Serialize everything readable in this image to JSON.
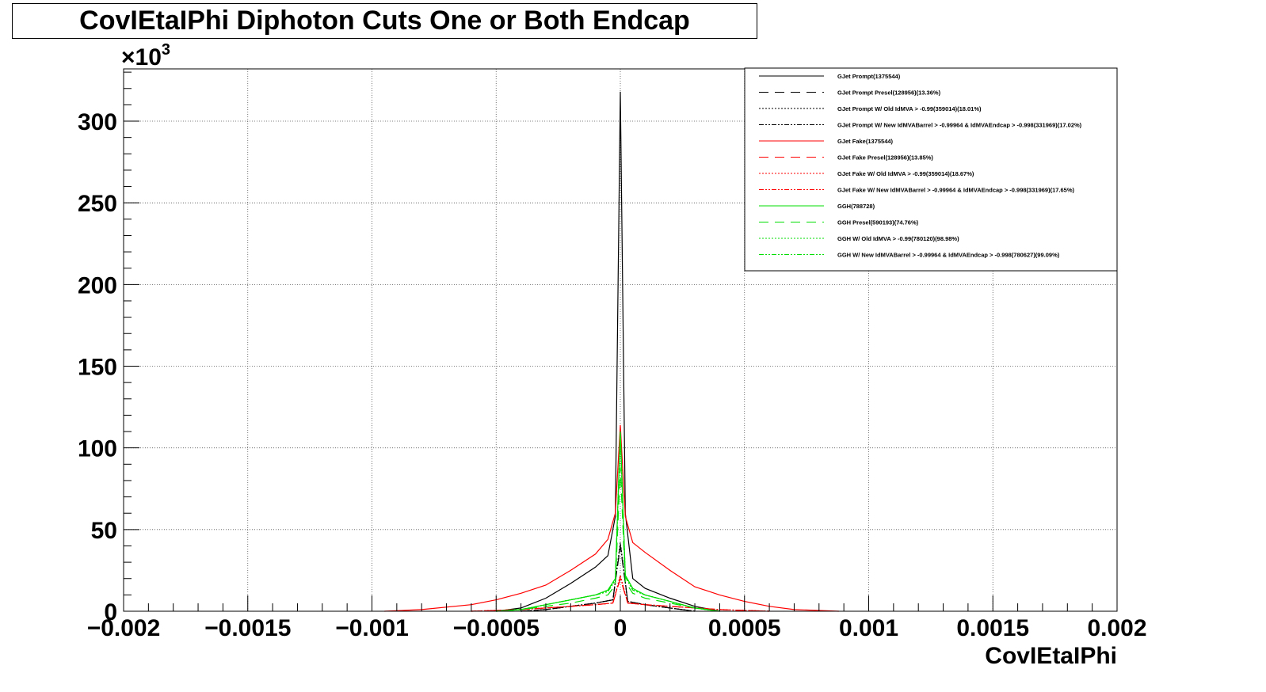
{
  "chart_data": {
    "type": "line",
    "title": "CovIEtaIPhi Diphoton Cuts One or Both Endcap",
    "xlabel": "CovIEtaIPhi",
    "ylabel": "",
    "y_multiplier": "×10",
    "y_multiplier_exp": "3",
    "xlim": [
      -0.002,
      0.002
    ],
    "ylim": [
      0,
      332
    ],
    "grid": true,
    "legend_position": "top-right",
    "x_ticks": [
      {
        "v": -0.002,
        "label": "−0.002"
      },
      {
        "v": -0.0015,
        "label": "−0.0015"
      },
      {
        "v": -0.001,
        "label": "−0.001"
      },
      {
        "v": -0.0005,
        "label": "−0.0005"
      },
      {
        "v": 0,
        "label": "0"
      },
      {
        "v": 0.0005,
        "label": "0.0005"
      },
      {
        "v": 0.001,
        "label": "0.001"
      },
      {
        "v": 0.0015,
        "label": "0.0015"
      },
      {
        "v": 0.002,
        "label": "0.002"
      }
    ],
    "y_ticks": [
      {
        "v": 0,
        "label": "0"
      },
      {
        "v": 50,
        "label": "50"
      },
      {
        "v": 100,
        "label": "100"
      },
      {
        "v": 150,
        "label": "150"
      },
      {
        "v": 200,
        "label": "200"
      },
      {
        "v": 250,
        "label": "250"
      },
      {
        "v": 300,
        "label": "300"
      }
    ],
    "series": [
      {
        "name": "GJet Prompt(1375544)",
        "color": "#000000",
        "dash": "solid",
        "x": [
          -0.0005,
          -0.0004,
          -0.0003,
          -0.0002,
          -0.0001,
          -5e-05,
          -2e-05,
          0,
          2e-05,
          5e-05,
          0.0001,
          0.0002,
          0.0003,
          0.0004
        ],
        "y": [
          0,
          2,
          8,
          17,
          27,
          34,
          58,
          318,
          60,
          20,
          14,
          8,
          3,
          0
        ]
      },
      {
        "name": "GJet Prompt Presel(128956)(13.36%)",
        "color": "#000000",
        "dash": "12,8",
        "x": [
          -0.0004,
          -0.0003,
          -0.0002,
          -0.0001,
          -3e-05,
          0,
          3e-05,
          0.0001,
          0.0002,
          0.0003
        ],
        "y": [
          0,
          1,
          3,
          5,
          7,
          40,
          6,
          4,
          2,
          0
        ]
      },
      {
        "name": "GJet Prompt W/ Old IdMVA > -0.99(359014)(18.01%)",
        "color": "#000000",
        "dash": "2,2",
        "x": [
          -0.0004,
          -0.0003,
          -0.0002,
          -0.0001,
          -3e-05,
          0,
          3e-05,
          0.0001,
          0.0002,
          0.0003
        ],
        "y": [
          0,
          1,
          3,
          5,
          7,
          42,
          6,
          4,
          2,
          0
        ]
      },
      {
        "name": "GJet Prompt W/ New IdMVABarrel > -0.99964 & IdMVAEndcap > -0.998(331969)(17.02%)",
        "color": "#000000",
        "dash": "6,2,2,2,2,2",
        "x": [
          -0.0004,
          -0.0003,
          -0.0002,
          -0.0001,
          -3e-05,
          0,
          3e-05,
          0.0001,
          0.0002,
          0.0003
        ],
        "y": [
          0,
          1,
          3,
          5,
          7,
          41,
          6,
          4,
          2,
          0
        ]
      },
      {
        "name": "GJet Fake(1375544)",
        "color": "#ff0000",
        "dash": "solid",
        "x": [
          -0.00095,
          -0.0008,
          -0.0006,
          -0.0005,
          -0.0004,
          -0.0003,
          -0.0002,
          -0.0001,
          -5e-05,
          -2e-05,
          0,
          2e-05,
          5e-05,
          0.0001,
          0.0002,
          0.0003,
          0.0004,
          0.0005,
          0.0006,
          0.0007,
          0.00088
        ],
        "y": [
          0,
          1,
          4,
          7,
          11,
          16,
          25,
          35,
          44,
          60,
          114,
          58,
          42,
          36,
          25,
          15,
          10,
          6,
          3,
          1,
          0
        ]
      },
      {
        "name": "GJet Fake Presel(128956)(13.85%)",
        "color": "#ff0000",
        "dash": "12,8",
        "x": [
          -0.0006,
          -0.0004,
          -0.0002,
          -0.0001,
          -3e-05,
          0,
          3e-05,
          0.0001,
          0.0002,
          0.0004,
          0.0006
        ],
        "y": [
          0,
          1,
          3,
          4,
          5,
          20,
          5,
          4,
          3,
          1,
          0
        ]
      },
      {
        "name": "GJet Fake W/ Old IdMVA > -0.99(359014)(18.67%)",
        "color": "#ff0000",
        "dash": "2,2",
        "x": [
          -0.0006,
          -0.0004,
          -0.0002,
          -0.0001,
          -3e-05,
          0,
          3e-05,
          0.0001,
          0.0002,
          0.0004,
          0.0006
        ],
        "y": [
          0,
          1,
          3,
          4,
          5,
          22,
          5,
          4,
          3,
          1,
          0
        ]
      },
      {
        "name": "GJet Fake W/ New IdMVABarrel > -0.99964 & IdMVAEndcap > -0.998(331969)(17.65%)",
        "color": "#ff0000",
        "dash": "6,2,2,2,2,2",
        "x": [
          -0.0006,
          -0.0004,
          -0.0002,
          -0.0001,
          -3e-05,
          0,
          3e-05,
          0.0001,
          0.0002,
          0.0004,
          0.0006
        ],
        "y": [
          0,
          1,
          3,
          4,
          5,
          21,
          5,
          4,
          3,
          1,
          0
        ]
      },
      {
        "name": "GGH(788728)",
        "color": "#00dd00",
        "dash": "solid",
        "x": [
          -0.0005,
          -0.0004,
          -0.0003,
          -0.0002,
          -0.0001,
          -5e-05,
          -2e-05,
          0,
          2e-05,
          5e-05,
          0.0001,
          0.0002,
          0.0003,
          0.0004
        ],
        "y": [
          0,
          1,
          4,
          7,
          10,
          13,
          20,
          110,
          22,
          14,
          10,
          6,
          2,
          0
        ]
      },
      {
        "name": "GGH Presel(590193)(74.76%)",
        "color": "#00dd00",
        "dash": "12,8",
        "x": [
          -0.0005,
          -0.0004,
          -0.0003,
          -0.0002,
          -0.0001,
          -5e-05,
          -2e-05,
          0,
          2e-05,
          5e-05,
          0.0001,
          0.0002,
          0.0003,
          0.0004
        ],
        "y": [
          0,
          1,
          3,
          5,
          8,
          10,
          16,
          88,
          18,
          11,
          8,
          5,
          2,
          0
        ]
      },
      {
        "name": "GGH W/ Old IdMVA > -0.99(780120)(98.98%)",
        "color": "#00dd00",
        "dash": "2,2",
        "x": [
          -0.0005,
          -0.0004,
          -0.0003,
          -0.0002,
          -0.0001,
          -5e-05,
          -2e-05,
          0,
          2e-05,
          5e-05,
          0.0001,
          0.0002,
          0.0003,
          0.0004
        ],
        "y": [
          0,
          1,
          4,
          7,
          10,
          12,
          19,
          108,
          21,
          13,
          10,
          6,
          2,
          0
        ]
      },
      {
        "name": "GGH W/ New IdMVABarrel > -0.99964 & IdMVAEndcap > -0.998(780627)(99.09%)",
        "color": "#00dd00",
        "dash": "6,2,2,2,2,2",
        "x": [
          -0.0005,
          -0.0004,
          -0.0003,
          -0.0002,
          -0.0001,
          -5e-05,
          -2e-05,
          0,
          2e-05,
          5e-05,
          0.0001,
          0.0002,
          0.0003,
          0.0004
        ],
        "y": [
          0,
          1,
          4,
          7,
          10,
          12,
          19,
          109,
          21,
          13,
          10,
          6,
          2,
          0
        ]
      }
    ]
  }
}
